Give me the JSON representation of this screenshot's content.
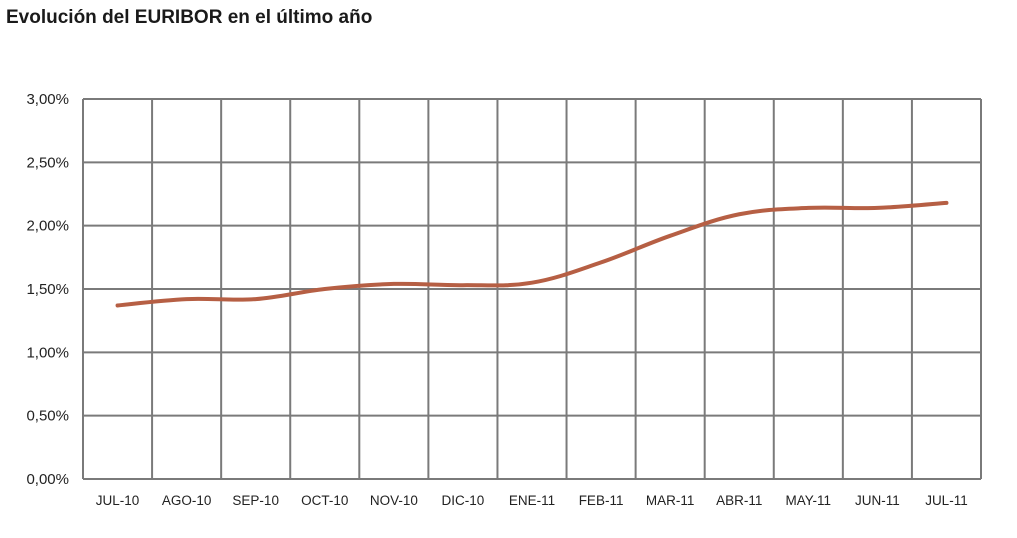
{
  "chart_data": {
    "type": "line",
    "title": "Evolución del EURIBOR en el último año",
    "xlabel": "",
    "ylabel": "",
    "categories": [
      "JUL-10",
      "AGO-10",
      "SEP-10",
      "OCT-10",
      "NOV-10",
      "DIC-10",
      "ENE-11",
      "FEB-11",
      "MAR-11",
      "ABR-11",
      "MAY-11",
      "JUN-11",
      "JUL-11"
    ],
    "series": [
      {
        "values": [
          1.37,
          1.42,
          1.42,
          1.5,
          1.54,
          1.53,
          1.55,
          1.71,
          1.92,
          2.09,
          2.14,
          2.14,
          2.18
        ]
      }
    ],
    "yticks": [
      "0,00%",
      "0,50%",
      "1,00%",
      "1,50%",
      "2,00%",
      "2,50%",
      "3,00%"
    ],
    "ylim": [
      0,
      3
    ],
    "ytick_step": 0.5,
    "grid": true,
    "legend": "none",
    "colors": {
      "line": "#b65f44",
      "grid": "#7a7a7a",
      "text": "#222222"
    }
  }
}
